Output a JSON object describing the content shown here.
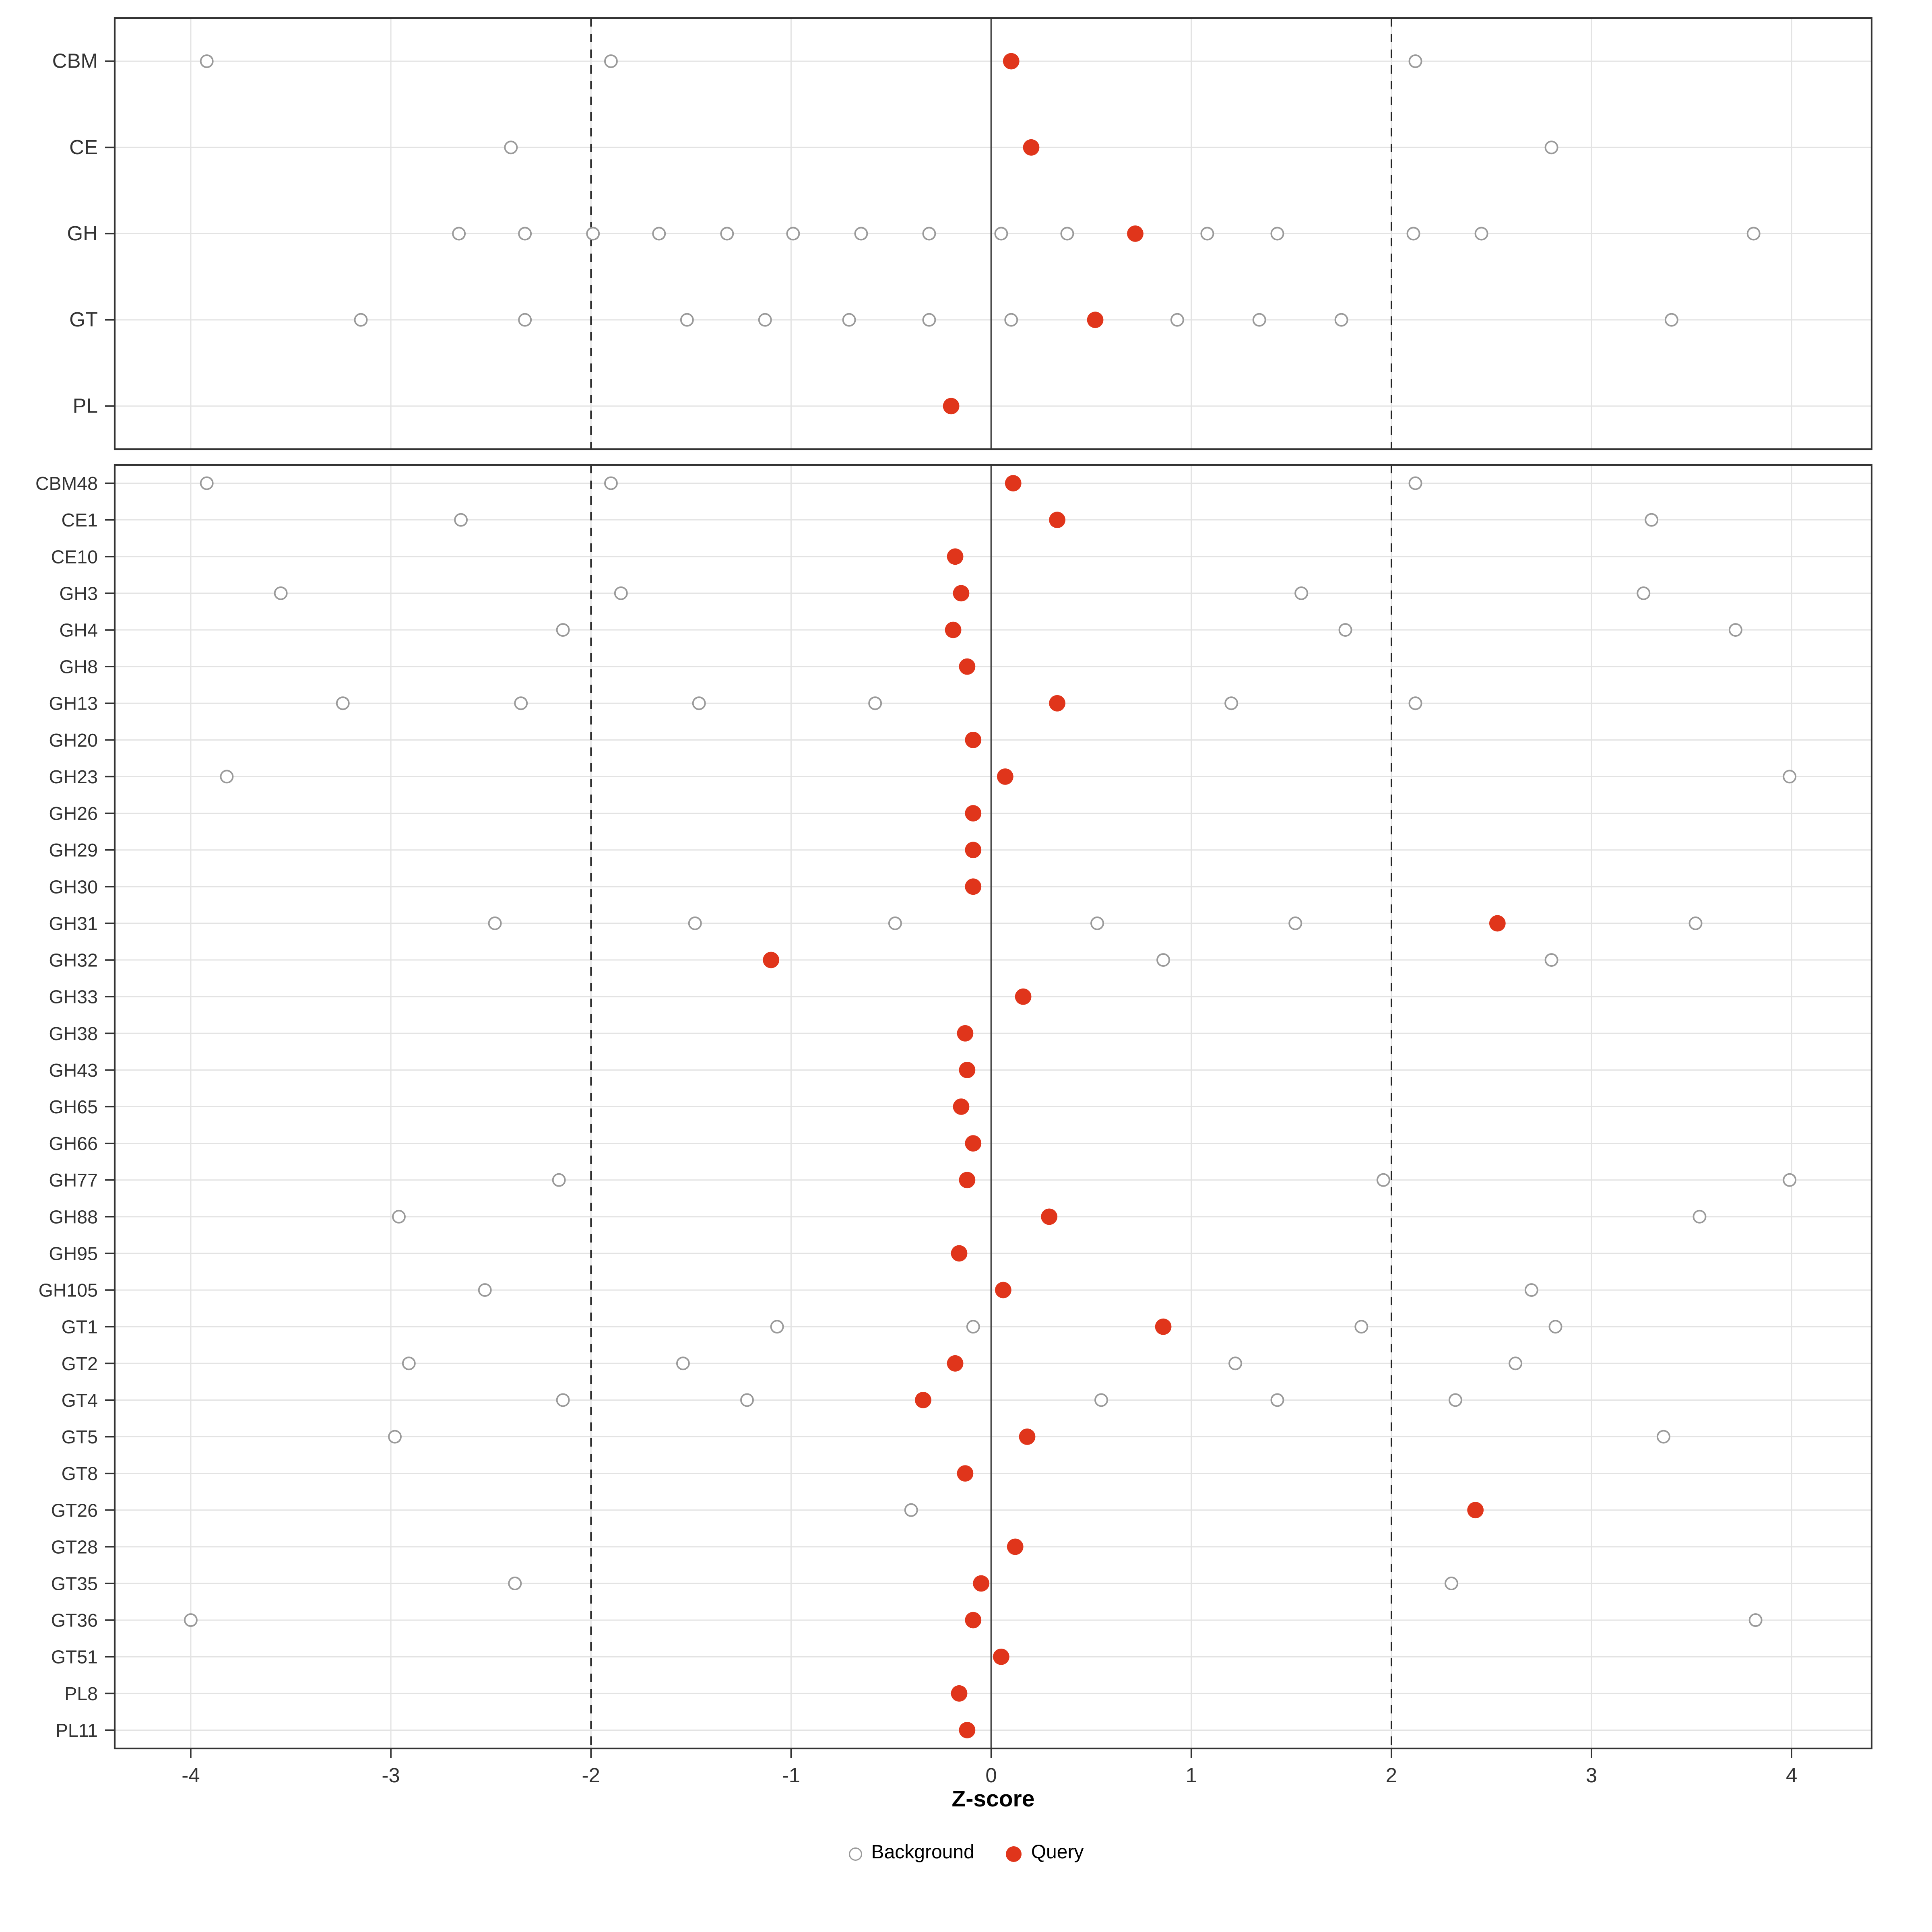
{
  "chart_data": {
    "type": "scatter",
    "title": "",
    "xlabel": "Z-score",
    "xlim": [
      -4.38,
      4.4
    ],
    "x_ticks": [
      -4,
      -3,
      -2,
      -1,
      0,
      1,
      2,
      3,
      4
    ],
    "x_tick_labels": [
      "-4",
      "-3",
      "-2",
      "-1",
      "0",
      "1",
      "2",
      "3",
      "4"
    ],
    "reference_lines": {
      "solid": 0,
      "dashed": [
        -2,
        2
      ]
    },
    "grid": true,
    "legend_position": "bottom",
    "legend": [
      {
        "label": "Background",
        "style": "open-circle"
      },
      {
        "label": "Query",
        "style": "filled-circle"
      }
    ],
    "colors": {
      "query": "#E0351B",
      "background_stroke": "#9a9a9a",
      "gridline": "#e3e3e3",
      "panel_border": "#333333",
      "zero_line": "#4d4d4d",
      "dashed_line": "#222222",
      "tick_text": "#333333"
    },
    "panels": [
      {
        "name": "family-summary",
        "rows": [
          {
            "label": "CBM",
            "background": [
              -3.92,
              -1.9,
              2.12
            ],
            "query": 0.1
          },
          {
            "label": "CE",
            "background": [
              -2.4,
              2.8
            ],
            "query": 0.2
          },
          {
            "label": "GH",
            "background": [
              -2.66,
              -2.33,
              -1.99,
              -1.66,
              -1.32,
              -0.99,
              -0.65,
              -0.31,
              0.05,
              0.38,
              1.08,
              1.43,
              2.11,
              2.45,
              3.81
            ],
            "query": 0.72
          },
          {
            "label": "GT",
            "background": [
              -3.15,
              -2.33,
              -1.52,
              -1.13,
              -0.71,
              -0.31,
              0.1,
              0.93,
              1.34,
              1.75,
              3.4
            ],
            "query": 0.52
          },
          {
            "label": "PL",
            "background": [],
            "query": -0.2
          }
        ]
      },
      {
        "name": "subfamily-detail",
        "rows": [
          {
            "label": "CBM48",
            "background": [
              -3.92,
              -1.9,
              2.12
            ],
            "query": 0.11
          },
          {
            "label": "CE1",
            "background": [
              -2.65,
              3.3
            ],
            "query": 0.33
          },
          {
            "label": "CE10",
            "background": [],
            "query": -0.18
          },
          {
            "label": "GH3",
            "background": [
              -3.55,
              -1.85,
              1.55,
              3.26
            ],
            "query": -0.15
          },
          {
            "label": "GH4",
            "background": [
              -2.14,
              1.77,
              3.72
            ],
            "query": -0.19
          },
          {
            "label": "GH8",
            "background": [],
            "query": -0.12
          },
          {
            "label": "GH13",
            "background": [
              -3.24,
              -2.35,
              -1.46,
              -0.58,
              1.2,
              2.12
            ],
            "query": 0.33
          },
          {
            "label": "GH20",
            "background": [],
            "query": -0.09
          },
          {
            "label": "GH23",
            "background": [
              -3.82,
              3.99
            ],
            "query": 0.07
          },
          {
            "label": "GH26",
            "background": [],
            "query": -0.09
          },
          {
            "label": "GH29",
            "background": [],
            "query": -0.09
          },
          {
            "label": "GH30",
            "background": [],
            "query": -0.09
          },
          {
            "label": "GH31",
            "background": [
              -2.48,
              -1.48,
              -0.48,
              0.53,
              1.52,
              3.52
            ],
            "query": 2.53
          },
          {
            "label": "GH32",
            "background": [
              0.86,
              2.8
            ],
            "query": -1.1
          },
          {
            "label": "GH33",
            "background": [],
            "query": 0.16
          },
          {
            "label": "GH38",
            "background": [],
            "query": -0.13
          },
          {
            "label": "GH43",
            "background": [],
            "query": -0.12
          },
          {
            "label": "GH65",
            "background": [],
            "query": -0.15
          },
          {
            "label": "GH66",
            "background": [],
            "query": -0.09
          },
          {
            "label": "GH77",
            "background": [
              -2.16,
              1.96,
              3.99
            ],
            "query": -0.12
          },
          {
            "label": "GH88",
            "background": [
              -2.96,
              3.54
            ],
            "query": 0.29
          },
          {
            "label": "GH95",
            "background": [],
            "query": -0.16
          },
          {
            "label": "GH105",
            "background": [
              -2.53,
              2.7
            ],
            "query": 0.06
          },
          {
            "label": "GT1",
            "background": [
              -1.07,
              -0.09,
              1.85,
              2.82
            ],
            "query": 0.86
          },
          {
            "label": "GT2",
            "background": [
              -2.91,
              -1.54,
              1.22,
              2.62
            ],
            "query": -0.18
          },
          {
            "label": "GT4",
            "background": [
              -2.14,
              -1.22,
              0.55,
              1.43,
              2.32
            ],
            "query": -0.34
          },
          {
            "label": "GT5",
            "background": [
              -2.98,
              3.36
            ],
            "query": 0.18
          },
          {
            "label": "GT8",
            "background": [],
            "query": -0.13
          },
          {
            "label": "GT26",
            "background": [
              -0.4
            ],
            "query": 2.42
          },
          {
            "label": "GT28",
            "background": [],
            "query": 0.12
          },
          {
            "label": "GT35",
            "background": [
              -2.38,
              2.3
            ],
            "query": -0.05
          },
          {
            "label": "GT36",
            "background": [
              -4.0,
              3.82
            ],
            "query": -0.09
          },
          {
            "label": "GT51",
            "background": [],
            "query": 0.05
          },
          {
            "label": "PL8",
            "background": [],
            "query": -0.16
          },
          {
            "label": "PL11",
            "background": [],
            "query": -0.12
          }
        ]
      }
    ]
  }
}
